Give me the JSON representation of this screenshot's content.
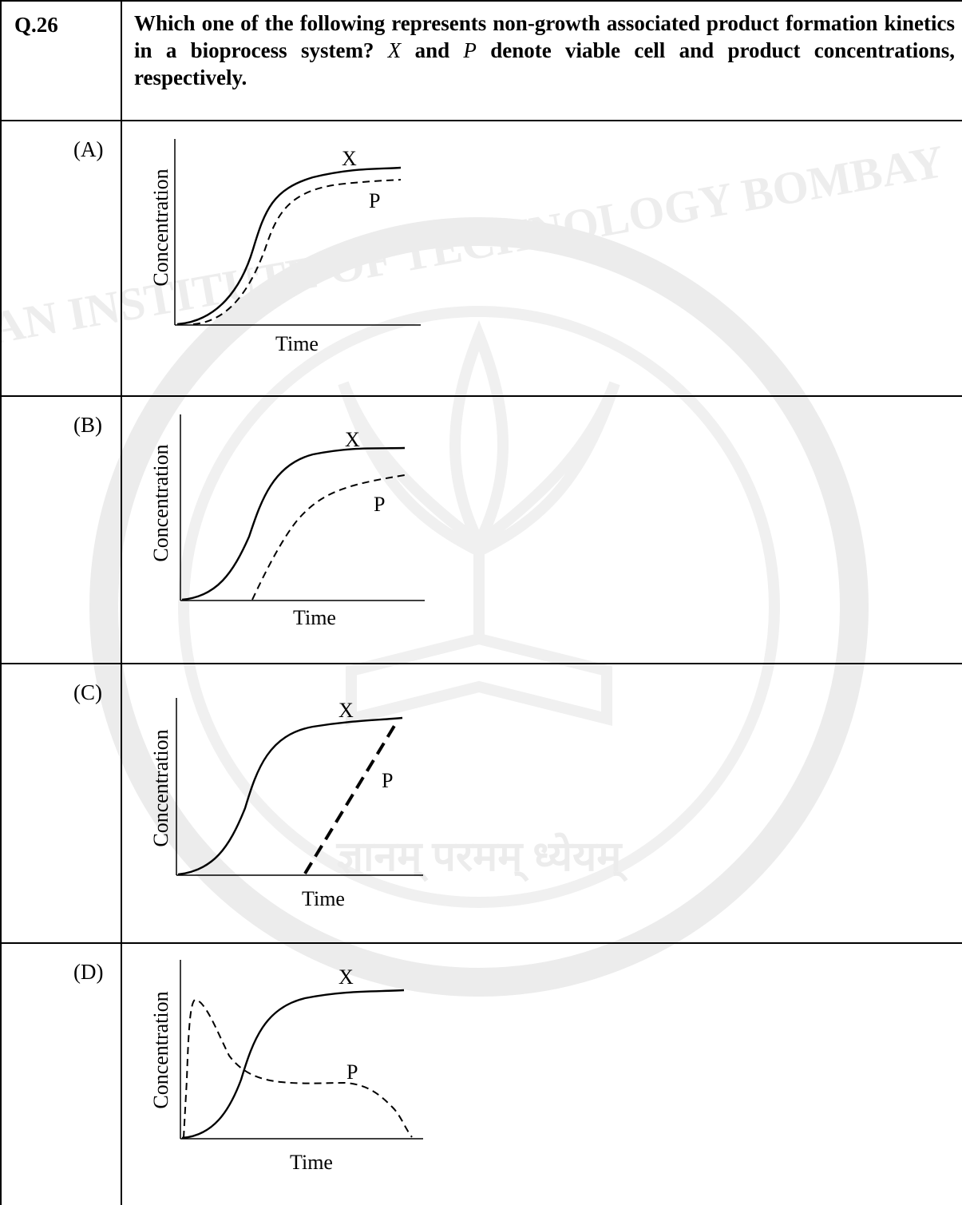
{
  "question": {
    "number": "Q.26",
    "text_part1": "Which one of the following represents non-growth associated product formation kinetics in a bioprocess system?",
    "var_x": "X",
    "text_and": "and",
    "var_p": "P",
    "text_part2": "denote viable cell and product concentrations, respectively."
  },
  "options": [
    {
      "label": "(A)",
      "ylabel": "Concentration",
      "xlabel": "Time",
      "series_x": "X",
      "series_p": "P"
    },
    {
      "label": "(B)",
      "ylabel": "Concentration",
      "xlabel": "Time",
      "series_x": "X",
      "series_p": "P"
    },
    {
      "label": "(C)",
      "ylabel": "Concentration",
      "xlabel": "Time",
      "series_x": "X",
      "series_p": "P"
    },
    {
      "label": "(D)",
      "ylabel": "Concentration",
      "xlabel": "Time",
      "series_x": "X",
      "series_p": "P"
    }
  ],
  "watermark": {
    "text_top": "INDIAN INSTITUTE OF TECHNOLOGY BOMBAY",
    "motto": "ज्ञानम् परमम् ध्येयम्",
    "color": "#e6e6e6"
  }
}
